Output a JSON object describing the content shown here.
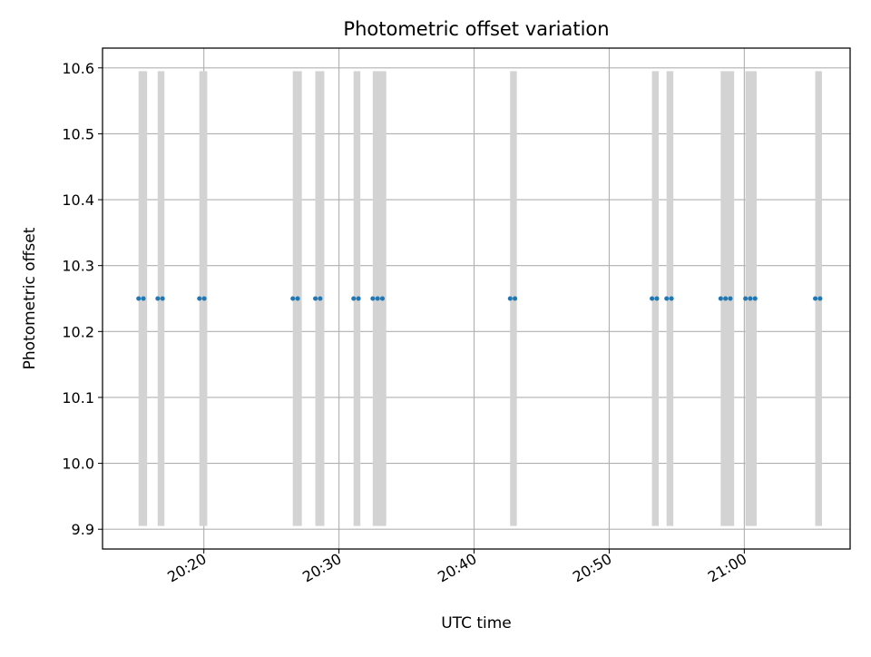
{
  "chart_data": {
    "type": "scatter",
    "title": "Photometric offset variation",
    "xlabel": "UTC time",
    "ylabel": "Photometric offset",
    "xlim": [
      "20:12:30",
      "21:07:50"
    ],
    "ylim": [
      9.87,
      10.63
    ],
    "x_ticks": [
      "20:20",
      "20:30",
      "20:40",
      "20:50",
      "21:00"
    ],
    "y_ticks": [
      9.9,
      10.0,
      10.1,
      10.2,
      10.3,
      10.4,
      10.5,
      10.6
    ],
    "grid": true,
    "bar_color": "#d3d3d3",
    "point_color": "#1f77b4",
    "bar_range": [
      9.905,
      10.595
    ],
    "series": [
      {
        "values_y": 10.25,
        "segments": [
          [
            "20:15:10",
            "20:15:48"
          ],
          [
            "20:16:35",
            "20:17:05"
          ],
          [
            "20:19:40",
            "20:20:15"
          ],
          [
            "20:26:35",
            "20:27:15"
          ],
          [
            "20:28:15",
            "20:28:55"
          ],
          [
            "20:31:05",
            "20:31:35"
          ],
          [
            "20:32:30",
            "20:33:30"
          ],
          [
            "20:42:40",
            "20:43:10"
          ],
          [
            "20:53:10",
            "20:53:40"
          ],
          [
            "20:54:15",
            "20:54:45"
          ],
          [
            "20:58:15",
            "20:59:15"
          ],
          [
            "21:00:05",
            "21:00:55"
          ],
          [
            "21:05:15",
            "21:05:45"
          ]
        ]
      }
    ]
  }
}
